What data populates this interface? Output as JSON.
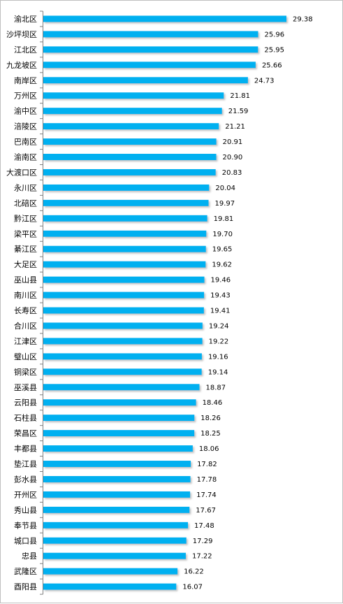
{
  "chart_data": {
    "type": "bar",
    "orientation": "horizontal",
    "categories": [
      "渝北区",
      "沙坪坝区",
      "江北区",
      "九龙坡区",
      "南岸区",
      "万州区",
      "渝中区",
      "涪陵区",
      "巴南区",
      "渝南区",
      "大渡口区",
      "永川区",
      "北碚区",
      "黔江区",
      "梁平区",
      "綦江区",
      "大足区",
      "巫山县",
      "南川区",
      "长寿区",
      "合川区",
      "江津区",
      "璧山区",
      "铜梁区",
      "巫溪县",
      "云阳县",
      "石柱县",
      "荣昌区",
      "丰都县",
      "垫江县",
      "彭水县",
      "开州区",
      "秀山县",
      "奉节县",
      "城口县",
      "忠县",
      "武隆区",
      "酉阳县"
    ],
    "values": [
      29.38,
      25.96,
      25.95,
      25.66,
      24.73,
      21.81,
      21.59,
      21.21,
      20.91,
      20.9,
      20.83,
      20.04,
      19.97,
      19.81,
      19.7,
      19.65,
      19.62,
      19.46,
      19.43,
      19.41,
      19.24,
      19.22,
      19.16,
      19.14,
      18.87,
      18.46,
      18.26,
      18.25,
      18.06,
      17.82,
      17.78,
      17.74,
      17.67,
      17.48,
      17.29,
      17.22,
      16.22,
      16.07
    ],
    "value_labels": [
      "29.38",
      "25.96",
      "25.95",
      "25.66",
      "24.73",
      "21.81",
      "21.59",
      "21.21",
      "20.91",
      "20.90",
      "20.83",
      "20.04",
      "19.97",
      "19.81",
      "19.70",
      "19.65",
      "19.62",
      "19.46",
      "19.43",
      "19.41",
      "19.24",
      "19.22",
      "19.16",
      "19.14",
      "18.87",
      "18.46",
      "18.26",
      "18.25",
      "18.06",
      "17.82",
      "17.78",
      "17.74",
      "17.67",
      "17.48",
      "17.29",
      "17.22",
      "16.22",
      "16.07"
    ],
    "xlim": [
      0,
      30
    ],
    "title": "",
    "xlabel": "",
    "ylabel": "",
    "grid": false,
    "legend": "none",
    "bar_color": "#00b0f0",
    "bar_shadow_color": "#bfbfbf"
  }
}
